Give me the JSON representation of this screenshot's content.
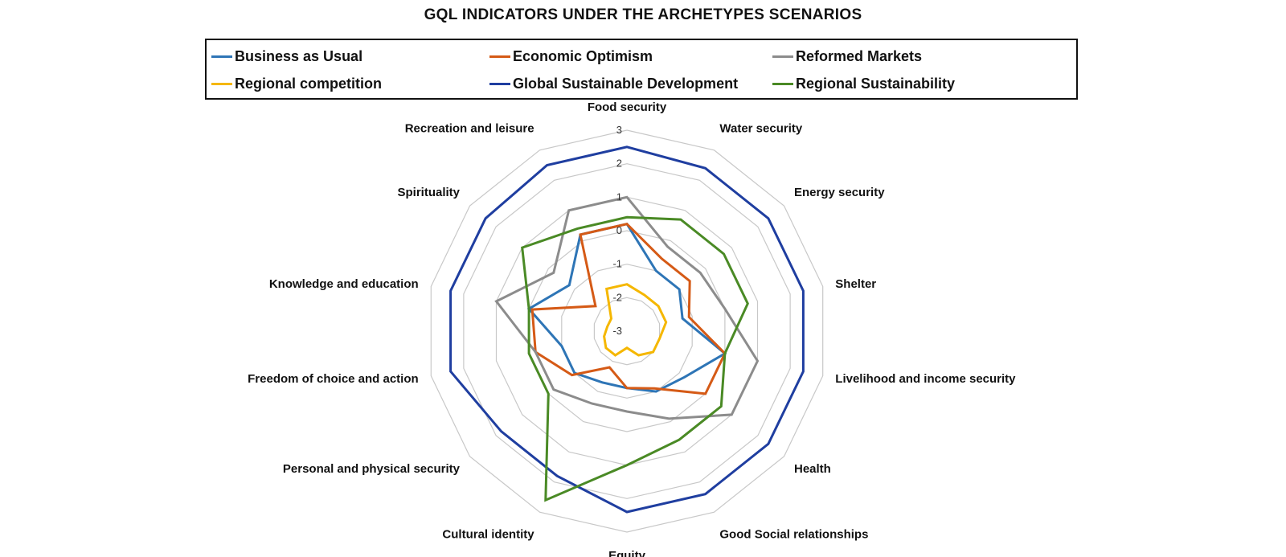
{
  "chart_data": {
    "type": "radar",
    "title": "GQL INDICATORS UNDER THE ARCHETYPES SCENARIOS",
    "categories": [
      "Food security",
      "Water security",
      "Energy security",
      "Shelter",
      "Livelihood and income security",
      "Health",
      "Good Social relationships",
      "Equity",
      "Cultural identity",
      "Personal and physical security",
      "Freedom of choice and action",
      "Knowledge and education",
      "Spirituality",
      "Recreation and leisure"
    ],
    "rlim": [
      -3,
      3
    ],
    "ticks": [
      "-3",
      "-2",
      "-1",
      "0",
      "1",
      "2",
      "3"
    ],
    "grid": true,
    "legend_position": "top",
    "series": [
      {
        "name": "Business as Usual",
        "color": "#2e75b6",
        "values": [
          0.2,
          -1.0,
          -1.0,
          -1.3,
          0.0,
          -0.8,
          -1.0,
          -1.3,
          -1.3,
          -1.0,
          -1.0,
          0.0,
          -0.8,
          0.2
        ]
      },
      {
        "name": "Economic Optimism",
        "color": "#d55a16",
        "values": [
          0.2,
          -0.6,
          -0.6,
          -1.1,
          0.0,
          0.0,
          -1.1,
          -1.3,
          -1.8,
          -0.9,
          -0.2,
          -0.1,
          -1.8,
          0.2
        ]
      },
      {
        "name": "Reformed Markets",
        "color": "#8c8c8c",
        "values": [
          1.0,
          -0.2,
          -0.2,
          0.0,
          1.0,
          1.0,
          -0.1,
          -0.6,
          -0.6,
          -0.2,
          -0.2,
          1.0,
          -0.2,
          1.0
        ]
      },
      {
        "name": "Regional competition",
        "color": "#f5b700",
        "values": [
          -1.6,
          -1.8,
          -1.8,
          -1.8,
          -2.0,
          -2.0,
          -2.2,
          -2.5,
          -2.2,
          -2.2,
          -2.3,
          -2.4,
          -2.4,
          -1.6
        ]
      },
      {
        "name": "Global Sustainable Development",
        "color": "#1f3ea0",
        "values": [
          2.5,
          2.4,
          2.4,
          2.4,
          2.4,
          2.4,
          2.4,
          2.4,
          1.8,
          1.8,
          2.4,
          2.4,
          2.4,
          2.5
        ]
      },
      {
        "name": "Regional Sustainability",
        "color": "#4a8a25",
        "values": [
          0.4,
          0.7,
          0.7,
          0.7,
          0.0,
          0.6,
          0.6,
          1.0,
          2.6,
          0.0,
          0.0,
          0.0,
          1.0,
          0.4
        ]
      }
    ]
  },
  "legend": {
    "items": [
      "Business as Usual",
      "Economic Optimism",
      "Reformed Markets",
      "Regional competition",
      "Global Sustainable Development",
      "Regional Sustainability"
    ]
  }
}
